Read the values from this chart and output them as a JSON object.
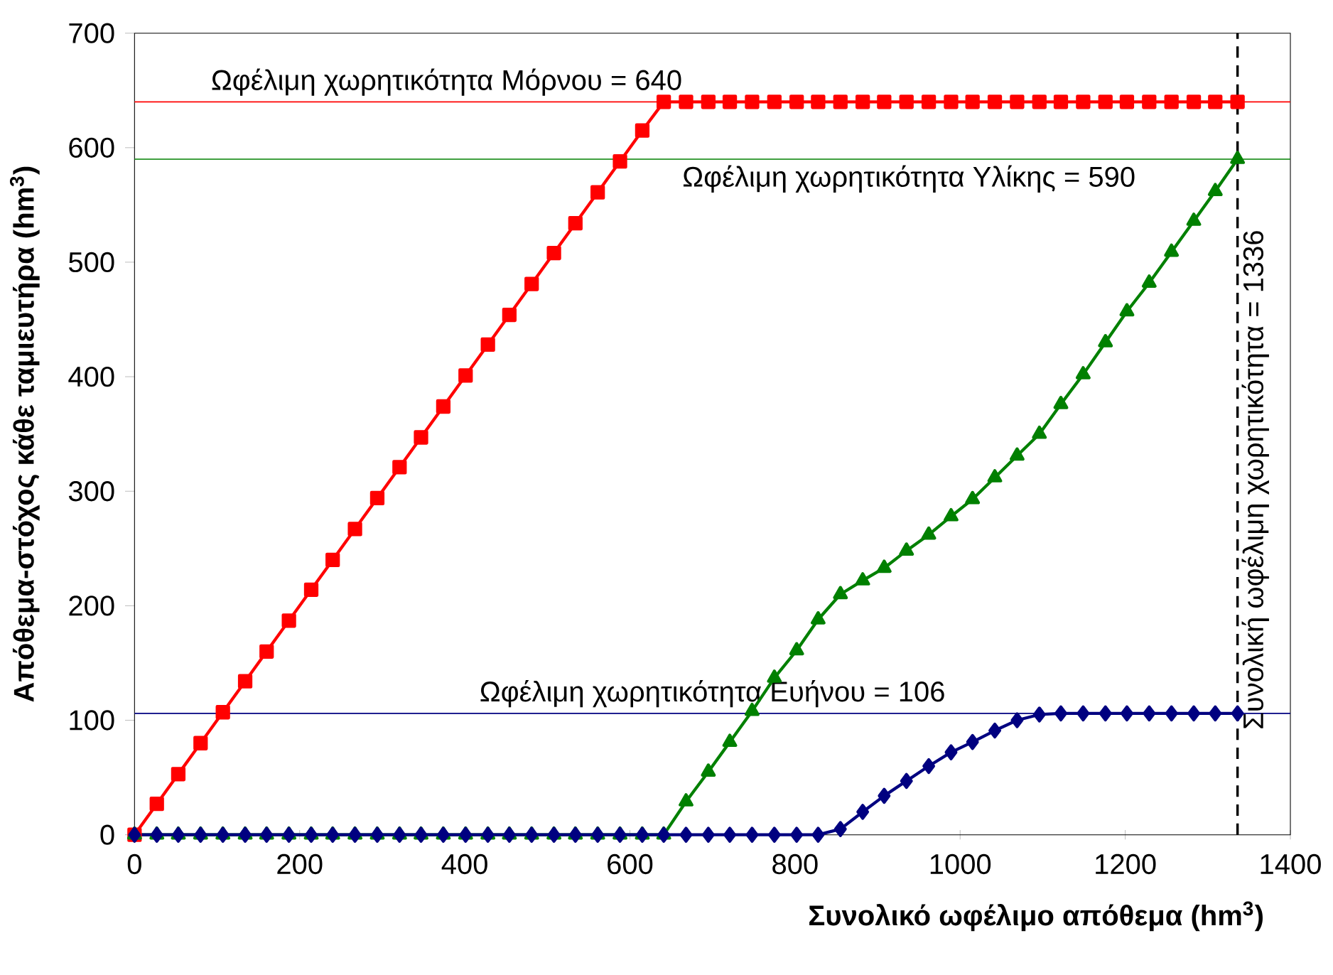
{
  "chart_data": {
    "type": "line",
    "xlabel": "Συνολικό ωφέλιμο απόθεμα (hm$^{3}$)",
    "ylabel": "Απόθεμα-στόχος κάθε ταμιευτήρα (hm$^{3}$)",
    "x": [
      0,
      27,
      53,
      80,
      107,
      134,
      160,
      187,
      214,
      240,
      267,
      294,
      321,
      347,
      374,
      401,
      428,
      454,
      481,
      508,
      534,
      561,
      588,
      615,
      641,
      668,
      695,
      721,
      748,
      775,
      802,
      828,
      855,
      882,
      908,
      935,
      962,
      989,
      1015,
      1042,
      1069,
      1096,
      1122,
      1149,
      1176,
      1202,
      1229,
      1256,
      1283,
      1309,
      1336
    ],
    "series": [
      {
        "color": "#ff0000",
        "marker": "square",
        "values": [
          0,
          27,
          53,
          80,
          107,
          134,
          160,
          187,
          214,
          240,
          267,
          294,
          321,
          347,
          374,
          401,
          428,
          454,
          481,
          508,
          534,
          561,
          588,
          615,
          640,
          640,
          640,
          640,
          640,
          640,
          640,
          640,
          640,
          640,
          640,
          640,
          640,
          640,
          640,
          640,
          640,
          640,
          640,
          640,
          640,
          640,
          640,
          640,
          640,
          640,
          640
        ]
      },
      {
        "color": "#008000",
        "marker": "triangle",
        "values": [
          0,
          0,
          0,
          0,
          0,
          0,
          0,
          0,
          0,
          0,
          0,
          0,
          0,
          0,
          0,
          0,
          0,
          0,
          0,
          0,
          0,
          0,
          0,
          0,
          0,
          29,
          55,
          81,
          108,
          137,
          161,
          188,
          210,
          222,
          233,
          248,
          262,
          278,
          293,
          312,
          331,
          350,
          376,
          402,
          430,
          457,
          482,
          509,
          536,
          562,
          590
        ]
      },
      {
        "color": "#000080",
        "marker": "diamond",
        "values": [
          0,
          0,
          0,
          0,
          0,
          0,
          0,
          0,
          0,
          0,
          0,
          0,
          0,
          0,
          0,
          0,
          0,
          0,
          0,
          0,
          0,
          0,
          0,
          0,
          0,
          0,
          0,
          0,
          0,
          0,
          0,
          0,
          5,
          20,
          34,
          47,
          60,
          72,
          81,
          91,
          100,
          105,
          106,
          106,
          106,
          106,
          106,
          106,
          106,
          106,
          106
        ]
      }
    ],
    "xlim": [
      0,
      1400
    ],
    "xticks": [
      0,
      200,
      400,
      600,
      800,
      1000,
      1200,
      1400
    ],
    "ylim": [
      0,
      700
    ],
    "yticks": [
      0,
      100,
      200,
      300,
      400,
      500,
      600,
      700
    ],
    "ref_lines": [
      {
        "axis": "y",
        "value": 640,
        "label": "Ωφέλιμη χωρητικότητα Μόρνου = 640",
        "color": "#ff0000"
      },
      {
        "axis": "y",
        "value": 590,
        "label": "Ωφέλιμη χωρητικότητα Υλίκης = 590",
        "color": "#008000"
      },
      {
        "axis": "y",
        "value": 106,
        "label": "Ωφέλιμη χωρητικότητα Ευήνου = 106",
        "color": "#000080"
      },
      {
        "axis": "x",
        "value": 1336,
        "label": "Συνολική ωφέλιμη χωρητικότητα = 1336",
        "color": "#000000",
        "line_style": "dashed"
      }
    ],
    "line_style": "solid"
  }
}
